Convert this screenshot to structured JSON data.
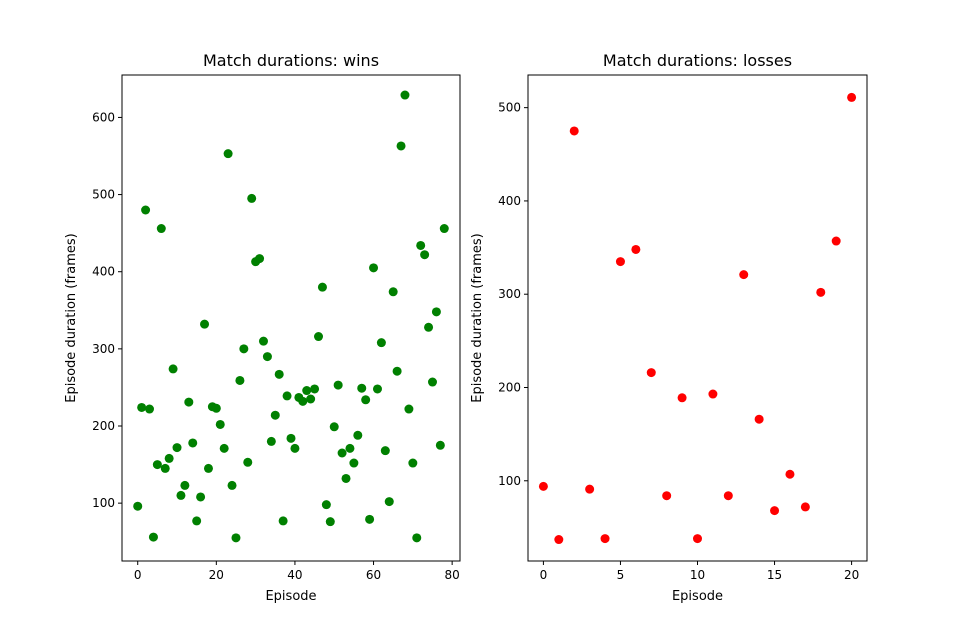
{
  "chart_data": [
    {
      "type": "scatter",
      "title": "Match durations: wins",
      "xlabel": "Episode",
      "ylabel": "Episode duration (frames)",
      "xlim": [
        -4,
        82
      ],
      "ylim": [
        25,
        655
      ],
      "xticks": [
        0,
        20,
        40,
        60,
        80
      ],
      "yticks": [
        100,
        200,
        300,
        400,
        500,
        600
      ],
      "color": "#008000",
      "points": [
        [
          0,
          96
        ],
        [
          1,
          224
        ],
        [
          2,
          480
        ],
        [
          3,
          222
        ],
        [
          4,
          56
        ],
        [
          5,
          150
        ],
        [
          6,
          456
        ],
        [
          7,
          145
        ],
        [
          8,
          158
        ],
        [
          9,
          274
        ],
        [
          10,
          172
        ],
        [
          11,
          110
        ],
        [
          12,
          123
        ],
        [
          13,
          231
        ],
        [
          14,
          178
        ],
        [
          15,
          77
        ],
        [
          16,
          108
        ],
        [
          17,
          332
        ],
        [
          18,
          145
        ],
        [
          19,
          225
        ],
        [
          20,
          223
        ],
        [
          21,
          202
        ],
        [
          22,
          171
        ],
        [
          23,
          553
        ],
        [
          24,
          123
        ],
        [
          25,
          55
        ],
        [
          26,
          259
        ],
        [
          27,
          300
        ],
        [
          28,
          153
        ],
        [
          29,
          495
        ],
        [
          30,
          413
        ],
        [
          31,
          417
        ],
        [
          32,
          310
        ],
        [
          33,
          290
        ],
        [
          34,
          180
        ],
        [
          35,
          214
        ],
        [
          36,
          267
        ],
        [
          37,
          77
        ],
        [
          38,
          239
        ],
        [
          39,
          184
        ],
        [
          40,
          171
        ],
        [
          41,
          237
        ],
        [
          42,
          232
        ],
        [
          43,
          246
        ],
        [
          44,
          235
        ],
        [
          45,
          248
        ],
        [
          46,
          316
        ],
        [
          47,
          380
        ],
        [
          48,
          98
        ],
        [
          49,
          76
        ],
        [
          50,
          199
        ],
        [
          51,
          253
        ],
        [
          52,
          165
        ],
        [
          53,
          132
        ],
        [
          54,
          171
        ],
        [
          55,
          152
        ],
        [
          56,
          188
        ],
        [
          57,
          249
        ],
        [
          58,
          234
        ],
        [
          59,
          79
        ],
        [
          60,
          405
        ],
        [
          61,
          248
        ],
        [
          62,
          308
        ],
        [
          63,
          168
        ],
        [
          64,
          102
        ],
        [
          65,
          374
        ],
        [
          66,
          271
        ],
        [
          67,
          563
        ],
        [
          68,
          629
        ],
        [
          69,
          222
        ],
        [
          70,
          152
        ],
        [
          71,
          55
        ],
        [
          72,
          434
        ],
        [
          73,
          422
        ],
        [
          74,
          328
        ],
        [
          75,
          257
        ],
        [
          76,
          348
        ],
        [
          77,
          175
        ],
        [
          78,
          456
        ]
      ]
    },
    {
      "type": "scatter",
      "title": "Match durations: losses",
      "xlabel": "Episode",
      "ylabel": "Episode duration (frames)",
      "xlim": [
        -1,
        21
      ],
      "ylim": [
        14,
        535
      ],
      "xticks": [
        0,
        5,
        10,
        15,
        20
      ],
      "yticks": [
        100,
        200,
        300,
        400,
        500
      ],
      "color": "#ff0000",
      "points": [
        [
          0,
          94
        ],
        [
          1,
          37
        ],
        [
          2,
          475
        ],
        [
          3,
          91
        ],
        [
          4,
          38
        ],
        [
          5,
          335
        ],
        [
          6,
          348
        ],
        [
          7,
          216
        ],
        [
          8,
          84
        ],
        [
          9,
          189
        ],
        [
          10,
          38
        ],
        [
          11,
          193
        ],
        [
          12,
          84
        ],
        [
          13,
          321
        ],
        [
          14,
          166
        ],
        [
          15,
          68
        ],
        [
          16,
          107
        ],
        [
          17,
          72
        ],
        [
          18,
          302
        ],
        [
          19,
          357
        ],
        [
          20,
          511
        ]
      ]
    }
  ]
}
